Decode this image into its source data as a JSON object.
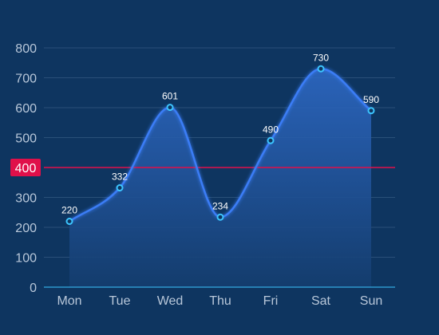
{
  "chart_data": {
    "type": "area",
    "categories": [
      "Mon",
      "Tue",
      "Wed",
      "Thu",
      "Fri",
      "Sat",
      "Sun"
    ],
    "series": [
      {
        "values": [
          220,
          332,
          601,
          234,
          490,
          730,
          590
        ]
      }
    ],
    "ylim": [
      0,
      800
    ],
    "yticks": [
      0,
      100,
      200,
      300,
      400,
      500,
      600,
      700,
      800
    ],
    "grid": true,
    "smooth": true,
    "show_data_labels": true,
    "reference_line": {
      "value": 400,
      "label": "400",
      "color": "#e0104a"
    },
    "colors": {
      "background": "#0e3560",
      "line": "#3b7df6",
      "point_fill": "#0e3560",
      "point_stroke": "#3cc6ff",
      "area_top": "#2f6bc9",
      "area_bottom": "#143d6e",
      "grid": "#2a5078",
      "axis": "#3cc6ff",
      "tick_text": "#b8c7d9",
      "data_label_text": "#ffffff"
    }
  }
}
